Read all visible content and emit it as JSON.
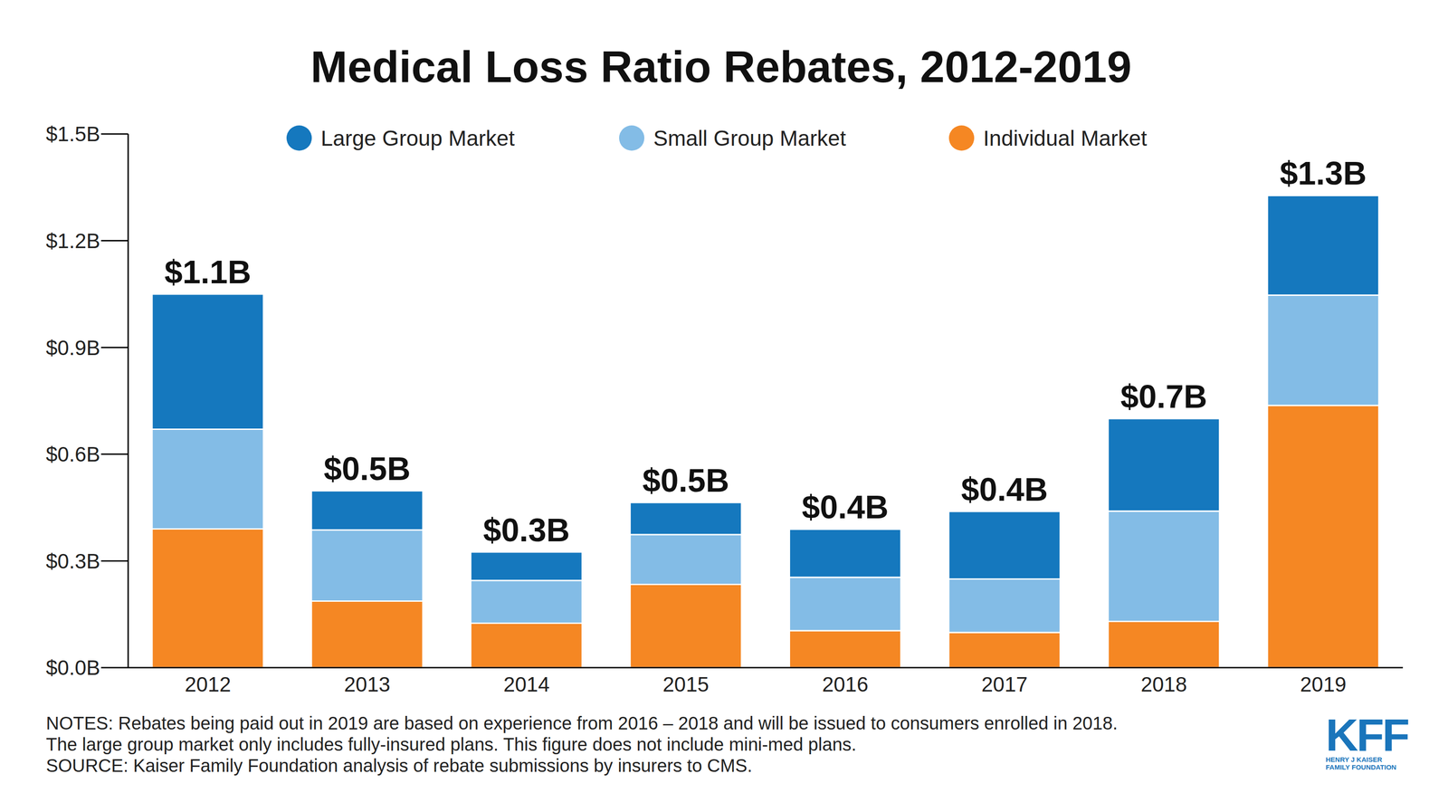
{
  "chart_data": {
    "type": "bar",
    "title": "Medical Loss Ratio Rebates, 2012-2019",
    "categories": [
      "2012",
      "2013",
      "2014",
      "2015",
      "2016",
      "2017",
      "2018",
      "2019"
    ],
    "series": [
      {
        "name": "Large Group Market",
        "color": "#1578be",
        "values": [
          0.38,
          0.11,
          0.08,
          0.09,
          0.135,
          0.19,
          0.26,
          0.28
        ]
      },
      {
        "name": "Small Group Market",
        "color": "#83bce6",
        "values": [
          0.28,
          0.2,
          0.12,
          0.14,
          0.15,
          0.15,
          0.31,
          0.31
        ]
      },
      {
        "name": "Individual Market",
        "color": "#f58723",
        "values": [
          0.39,
          0.187,
          0.125,
          0.234,
          0.104,
          0.099,
          0.13,
          0.737
        ]
      }
    ],
    "total_labels": [
      "$1.1B",
      "$0.5B",
      "$0.3B",
      "$0.5B",
      "$0.4B",
      "$0.4B",
      "$0.7B",
      "$1.3B"
    ],
    "ylim": [
      0,
      1.5
    ],
    "yticks": [
      {
        "value": 0,
        "label": "$0.0B"
      },
      {
        "value": 0.3,
        "label": "$0.3B"
      },
      {
        "value": 0.6,
        "label": "$0.6B"
      },
      {
        "value": 0.9,
        "label": "$0.9B"
      },
      {
        "value": 1.2,
        "label": "$1.2B"
      },
      {
        "value": 1.5,
        "label": "$1.5B"
      }
    ],
    "stacked": true,
    "grid": false,
    "legend": "top",
    "notes": [
      "NOTES: Rebates being paid out in 2019 are based on experience from 2016 – 2018 and will be issued to consumers enrolled in 2018.",
      "The large group market only includes fully-insured plans. This figure does not include mini-med plans.",
      "SOURCE: Kaiser Family Foundation analysis of rebate submissions by insurers to CMS."
    ],
    "logo": {
      "name": "KFF",
      "lines": [
        "HENRY J KAISER",
        "FAMILY FOUNDATION"
      ]
    }
  }
}
